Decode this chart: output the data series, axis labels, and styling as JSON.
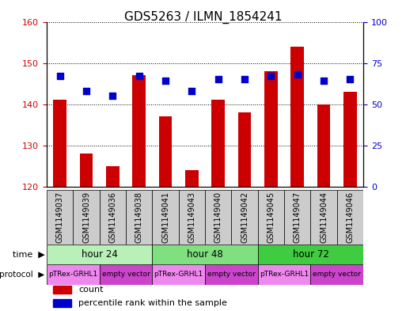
{
  "title": "GDS5263 / ILMN_1854241",
  "samples": [
    "GSM1149037",
    "GSM1149039",
    "GSM1149036",
    "GSM1149038",
    "GSM1149041",
    "GSM1149043",
    "GSM1149040",
    "GSM1149042",
    "GSM1149045",
    "GSM1149047",
    "GSM1149044",
    "GSM1149046"
  ],
  "counts": [
    141,
    128,
    125,
    147,
    137,
    124,
    141,
    138,
    148,
    154,
    140,
    143
  ],
  "percentiles": [
    67,
    58,
    55,
    67,
    64,
    58,
    65,
    65,
    67,
    68,
    64,
    65
  ],
  "ylim_left": [
    120,
    160
  ],
  "ylim_right": [
    0,
    100
  ],
  "yticks_left": [
    120,
    130,
    140,
    150,
    160
  ],
  "yticks_right": [
    0,
    25,
    50,
    75,
    100
  ],
  "time_groups": [
    {
      "label": "hour 24",
      "start": 0,
      "end": 4,
      "color": "#b8f0b8"
    },
    {
      "label": "hour 48",
      "start": 4,
      "end": 8,
      "color": "#80e080"
    },
    {
      "label": "hour 72",
      "start": 8,
      "end": 12,
      "color": "#40cc40"
    }
  ],
  "protocol_groups": [
    {
      "label": "pTRex-GRHL1",
      "start": 0,
      "end": 2,
      "color": "#ee88ee"
    },
    {
      "label": "empty vector",
      "start": 2,
      "end": 4,
      "color": "#cc44cc"
    },
    {
      "label": "pTRex-GRHL1",
      "start": 4,
      "end": 6,
      "color": "#ee88ee"
    },
    {
      "label": "empty vector",
      "start": 6,
      "end": 8,
      "color": "#cc44cc"
    },
    {
      "label": "pTRex-GRHL1",
      "start": 8,
      "end": 10,
      "color": "#ee88ee"
    },
    {
      "label": "empty vector",
      "start": 10,
      "end": 12,
      "color": "#cc44cc"
    }
  ],
  "bar_color": "#cc0000",
  "dot_color": "#0000cc",
  "bar_width": 0.5,
  "title_fontsize": 11,
  "tick_label_fontsize": 7,
  "axis_color_left": "#cc0000",
  "axis_color_right": "#0000cc",
  "sample_row_color": "#cccccc",
  "legend_fontsize": 8,
  "dot_size": 30
}
